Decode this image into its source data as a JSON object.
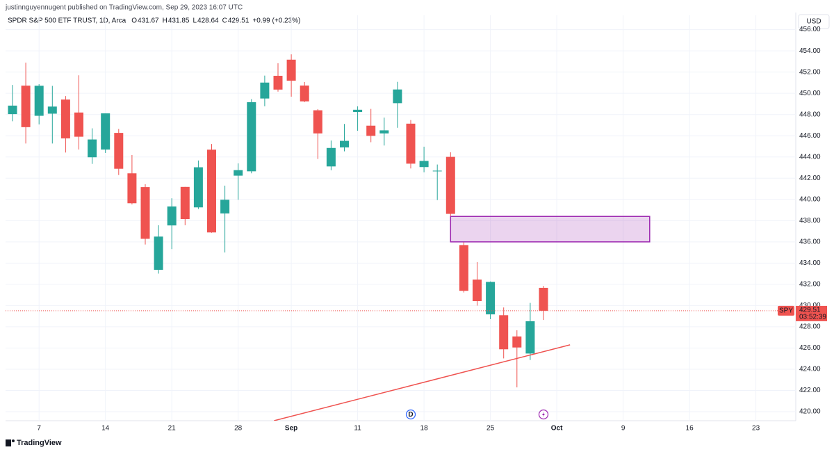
{
  "header": {
    "author_line": "justinnguyennugent published on TradingView.com, Sep 29, 2023 16:07 UTC",
    "symbol": "SPDR S&P 500 ETF TRUST, 1D, Arca",
    "ohlc": [
      {
        "label": "O",
        "value": 431.67
      },
      {
        "label": "H",
        "value": 431.85
      },
      {
        "label": "L",
        "value": 428.64
      },
      {
        "label": "C",
        "value": 429.51
      }
    ],
    "change": "+0.99 (+0.23%)"
  },
  "footer": "TradingView",
  "chart_data": {
    "type": "candlestick",
    "currency": "USD",
    "categories": [
      null,
      null,
      "7",
      null,
      null,
      null,
      null,
      "14",
      null,
      null,
      null,
      null,
      "21",
      null,
      null,
      null,
      null,
      "28",
      null,
      null,
      null,
      "Sep",
      null,
      null,
      null,
      null,
      "11",
      null,
      null,
      null,
      null,
      "18",
      null,
      null,
      null,
      null,
      "25",
      null,
      null,
      null,
      null,
      "Oct",
      null,
      null,
      null,
      null,
      "9",
      null,
      null,
      null,
      null,
      "16",
      null,
      null,
      null,
      null,
      "23",
      null,
      null,
      null
    ],
    "open": [
      448.04,
      450.72,
      447.88,
      448.08,
      449.41,
      448.19,
      443.97,
      444.7,
      446.27,
      442.46,
      441.16,
      433.37,
      437.55,
      441.18,
      439.25,
      444.69,
      438.68,
      442.24,
      442.65,
      449.51,
      451.65,
      453.17,
      450.73,
      448.4,
      443.11,
      444.9,
      448.24,
      446.95,
      446.22,
      449.07,
      447.14,
      443.05,
      442.68,
      444.01,
      435.7,
      432.45,
      429.17,
      429.09,
      427.09,
      425.48,
      431.67,
      null,
      null,
      null,
      null,
      null,
      null,
      null,
      null,
      null,
      null,
      null,
      null,
      null,
      null,
      null,
      null,
      null,
      null,
      null
    ],
    "high": [
      450.79,
      452.89,
      450.86,
      450.7,
      449.74,
      451.7,
      446.7,
      448.11,
      446.64,
      444.18,
      441.43,
      437.57,
      440.11,
      441.18,
      443.67,
      445.22,
      441.3,
      443.4,
      449.45,
      451.67,
      452.83,
      453.67,
      451.06,
      448.51,
      445.55,
      447.11,
      448.77,
      448.53,
      447.71,
      451.08,
      447.48,
      444.97,
      443.29,
      444.44,
      435.97,
      434.1,
      432.27,
      429.82,
      427.67,
      430.25,
      431.85,
      null,
      null,
      null,
      null,
      null,
      null,
      null,
      null,
      null,
      null,
      null,
      null,
      null,
      null,
      null,
      null,
      null,
      null,
      null
    ],
    "low": [
      447.37,
      445.27,
      447.07,
      445.27,
      444.42,
      444.7,
      443.35,
      444.38,
      442.3,
      439.53,
      435.75,
      433.01,
      435.32,
      437.57,
      439.1,
      436.86,
      435.0,
      439.97,
      442.46,
      448.78,
      450.16,
      449.68,
      449.17,
      443.81,
      442.75,
      444.53,
      446.47,
      445.39,
      445.08,
      446.75,
      442.92,
      442.56,
      439.94,
      438.43,
      431.23,
      429.99,
      428.72,
      425.02,
      422.29,
      424.87,
      428.64,
      null,
      null,
      null,
      null,
      null,
      null,
      null,
      null,
      null,
      null,
      null,
      null,
      null,
      null,
      null,
      null,
      null,
      null,
      null
    ],
    "close": [
      448.84,
      446.81,
      450.71,
      448.75,
      445.75,
      445.91,
      445.65,
      448.11,
      442.89,
      439.64,
      436.29,
      436.5,
      439.34,
      438.15,
      443.03,
      436.89,
      439.97,
      442.76,
      449.16,
      451.01,
      450.35,
      451.19,
      449.24,
      446.22,
      444.85,
      445.52,
      448.45,
      445.99,
      446.51,
      450.36,
      443.37,
      443.63,
      442.71,
      438.64,
      431.39,
      430.42,
      432.23,
      425.88,
      426.05,
      428.52,
      429.51,
      null,
      null,
      null,
      null,
      null,
      null,
      null,
      null,
      null,
      null,
      null,
      null,
      null,
      null,
      null,
      null,
      null,
      null,
      null
    ],
    "up_color": "#26a69a",
    "down_color": "#ef5350",
    "ylim": [
      419.15,
      457.35
    ],
    "yticks": [
      {
        "value": 420,
        "label": "420.00"
      },
      {
        "value": 422,
        "label": "422.00"
      },
      {
        "value": 424,
        "label": "424.00"
      },
      {
        "value": 426,
        "label": "426.00"
      },
      {
        "value": 428,
        "label": "428.00"
      },
      {
        "value": 430,
        "label": "430.00"
      },
      {
        "value": 432,
        "label": "432.00"
      },
      {
        "value": 434,
        "label": "434.00"
      },
      {
        "value": 436,
        "label": "436.00"
      },
      {
        "value": 438,
        "label": "438.00"
      },
      {
        "value": 440,
        "label": "440.00"
      },
      {
        "value": 442,
        "label": "442.00"
      },
      {
        "value": 444,
        "label": "444.00"
      },
      {
        "value": 446,
        "label": "446.00"
      },
      {
        "value": 448,
        "label": "448.00"
      },
      {
        "value": 450,
        "label": "450.00"
      },
      {
        "value": 452,
        "label": "452.00"
      },
      {
        "value": 454,
        "label": "454.00"
      },
      {
        "value": 456,
        "label": "456.00"
      }
    ],
    "grid": true,
    "last_price": {
      "ticker": "SPY",
      "value": 429.51,
      "countdown": "03:52:39",
      "color": "#ef5350"
    },
    "zone": {
      "x": [
        33,
        48
      ],
      "y": [
        436.0,
        438.4
      ],
      "color": "#9c27b0"
    },
    "trendline": {
      "x": [
        19.7,
        42.0
      ],
      "y": [
        419.15,
        426.3
      ],
      "color": "#ef5350"
    },
    "events": [
      {
        "x": 30,
        "label": "D",
        "color": "#2962ff"
      },
      {
        "x": 40,
        "color": "#9c27b0"
      }
    ]
  }
}
